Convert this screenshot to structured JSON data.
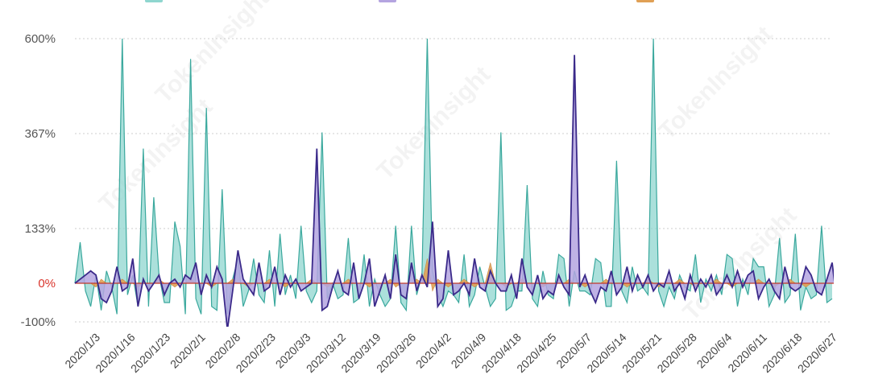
{
  "chart_data": {
    "type": "area",
    "watermark": "TokenInsight",
    "y_ticks": [
      {
        "label": "600%",
        "value": 600
      },
      {
        "label": "367%",
        "value": 367
      },
      {
        "label": "133%",
        "value": 133
      },
      {
        "label": "0%",
        "value": 0
      },
      {
        "label": "-100%",
        "value": -100
      }
    ],
    "ylim": [
      -100,
      600
    ],
    "x_tick_labels": [
      "2020/1/3",
      "2020/1/16",
      "2020/1/23",
      "2020/2/1",
      "2020/2/8",
      "2020/2/23",
      "2020/3/3",
      "2020/3/12",
      "2020/3/19",
      "2020/3/26",
      "2020/4/2",
      "2020/4/9",
      "2020/4/18",
      "2020/4/25",
      "2020/5/7",
      "2020/5/14",
      "2020/5/21",
      "2020/5/28",
      "2020/6/4",
      "2020/6/11",
      "2020/6/18",
      "2020/6/27"
    ],
    "grid": true,
    "legend_position": "top",
    "colors": {
      "teal_fill": "#8fd6cf",
      "teal_line": "#3aa89d",
      "purple_fill": "#b4a4e0",
      "purple_line": "#3b2a8a",
      "orange_fill": "#e0a055",
      "zero_line": "#c0392b",
      "grid": "#cccccc"
    },
    "series": [
      {
        "color": "#8fd6cf",
        "values": [
          0,
          100,
          -20,
          -60,
          20,
          -70,
          30,
          -10,
          -80,
          600,
          -30,
          20,
          -60,
          330,
          -60,
          210,
          20,
          -50,
          -50,
          150,
          90,
          -80,
          550,
          -40,
          -80,
          430,
          -60,
          -70,
          230,
          -80,
          10,
          60,
          -60,
          -20,
          60,
          -30,
          -50,
          80,
          -60,
          120,
          -30,
          20,
          -40,
          140,
          -20,
          -50,
          -20,
          370,
          -40,
          0,
          -40,
          -30,
          110,
          -50,
          -40,
          70,
          -60,
          10,
          -30,
          -60,
          -40,
          140,
          -50,
          -70,
          140,
          -30,
          20,
          600,
          30,
          -30,
          -60,
          -20,
          -30,
          -50,
          70,
          -60,
          -30,
          40,
          -10,
          -60,
          -40,
          370,
          -70,
          -60,
          -20,
          -20,
          240,
          -40,
          -60,
          30,
          -30,
          -40,
          70,
          60,
          -60,
          30,
          -20,
          -20,
          -30,
          60,
          50,
          -60,
          -60,
          300,
          -20,
          -50,
          40,
          -20,
          -10,
          -30,
          600,
          -20,
          -60,
          -10,
          -40,
          20,
          -10,
          -20,
          70,
          -50,
          10,
          -20,
          20,
          -30,
          70,
          60,
          -60,
          10,
          -30,
          60,
          40,
          40,
          -60,
          -30,
          110,
          -50,
          -30,
          120,
          -70,
          -10,
          -40,
          -30,
          140,
          -50,
          -40
        ]
      },
      {
        "color": "#b4a4e0",
        "values": [
          0,
          10,
          20,
          30,
          20,
          -40,
          -50,
          -20,
          40,
          -20,
          -10,
          60,
          -60,
          10,
          -20,
          0,
          20,
          -30,
          0,
          10,
          -10,
          20,
          10,
          50,
          -30,
          20,
          -10,
          40,
          10,
          -120,
          -20,
          80,
          10,
          -10,
          -30,
          50,
          -20,
          -10,
          40,
          -30,
          20,
          -10,
          10,
          -20,
          -10,
          0,
          330,
          -70,
          -60,
          -10,
          30,
          -20,
          -30,
          50,
          -40,
          0,
          60,
          -60,
          -20,
          20,
          -40,
          70,
          -30,
          -40,
          50,
          -20,
          20,
          -10,
          150,
          -60,
          -40,
          80,
          -30,
          -20,
          0,
          -30,
          60,
          -10,
          -20,
          30,
          0,
          -20,
          -20,
          20,
          -40,
          60,
          -10,
          -30,
          20,
          -40,
          -20,
          -30,
          20,
          -10,
          -30,
          640,
          -10,
          20,
          -20,
          -50,
          -10,
          -20,
          30,
          -30,
          -10,
          40,
          -20,
          20,
          -10,
          20,
          -20,
          0,
          -10,
          30,
          -20,
          0,
          -40,
          20,
          -20,
          10,
          -10,
          20,
          -30,
          -10,
          20,
          -10,
          30,
          -10,
          20,
          30,
          -40,
          -10,
          10,
          -20,
          -40,
          40,
          -10,
          -20,
          -10,
          40,
          20,
          -20,
          -30,
          10,
          50,
          -60
        ]
      },
      {
        "color": "#e0a055",
        "values": [
          0,
          0,
          0,
          0,
          -10,
          10,
          0,
          0,
          0,
          10,
          0,
          0,
          -10,
          0,
          0,
          0,
          10,
          0,
          0,
          -10,
          0,
          0,
          10,
          0,
          0,
          0,
          -10,
          0,
          0,
          0,
          10,
          0,
          0,
          -10,
          0,
          0,
          0,
          10,
          0,
          0,
          -10,
          0,
          0,
          0,
          0,
          10,
          0,
          0,
          -10,
          0,
          0,
          0,
          10,
          0,
          0,
          0,
          -10,
          0,
          0,
          0,
          10,
          -10,
          0,
          0,
          0,
          10,
          0,
          60,
          -20,
          10,
          0,
          -10,
          0,
          0,
          10,
          0,
          -10,
          0,
          0,
          50,
          0,
          0,
          -10,
          0,
          0,
          10,
          0,
          0,
          0,
          -10,
          0,
          0,
          0,
          0,
          10,
          0,
          0,
          -10,
          0,
          0,
          0,
          10,
          0,
          0,
          0,
          -10,
          0,
          0,
          0,
          10,
          0,
          -10,
          0,
          0,
          0,
          10,
          0,
          0,
          -10,
          0,
          0,
          0,
          10,
          0,
          0,
          -10,
          0,
          0,
          0,
          0,
          10,
          0,
          0,
          -10,
          0,
          0,
          10,
          0,
          0,
          -10,
          0,
          0,
          0,
          0,
          0,
          0,
          0,
          0,
          0
        ]
      }
    ]
  }
}
